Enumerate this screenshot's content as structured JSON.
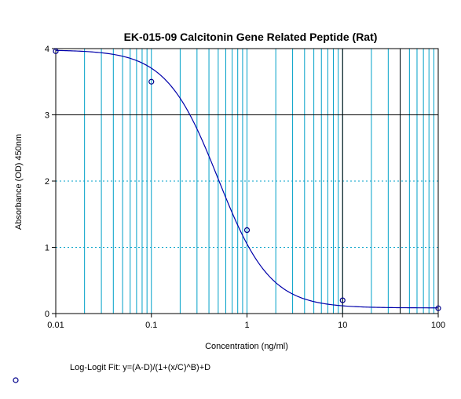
{
  "chart_data": {
    "type": "scatter",
    "title": "EK-015-09 Calcitonin Gene Related Peptide (Rat)",
    "xlabel": "Concentration (ng/ml)",
    "ylabel": "Absorbance (OD) 450nm",
    "x_scale": "log",
    "xlim": [
      0.01,
      100
    ],
    "ylim": [
      0,
      4
    ],
    "x_ticks": [
      0.01,
      0.1,
      1,
      10,
      100
    ],
    "x_tick_labels": [
      "0.01",
      "0.1",
      "1",
      "10",
      "100"
    ],
    "y_ticks": [
      0,
      1,
      2,
      3,
      4
    ],
    "y_tick_labels": [
      "0",
      "1",
      "2",
      "3",
      "4"
    ],
    "grid": true,
    "series": [
      {
        "points": [
          {
            "x": 0.01,
            "y": 3.96
          },
          {
            "x": 0.1,
            "y": 3.5
          },
          {
            "x": 1,
            "y": 1.26
          },
          {
            "x": 10,
            "y": 0.2
          },
          {
            "x": 100,
            "y": 0.08
          }
        ]
      }
    ],
    "fit": {
      "label": "Log-Logit Fit: y=(A-D)/(1+(x/C)^B)+D",
      "A": 3.98,
      "B": 1.6,
      "C": 0.5,
      "D": 0.085
    },
    "reference_lines": {
      "y": [
        3
      ],
      "x": [
        10,
        40
      ]
    },
    "colors": {
      "curve": "#0000aa",
      "marker": "#00008b",
      "grid": "#00a0c8",
      "axis": "#000000"
    }
  }
}
